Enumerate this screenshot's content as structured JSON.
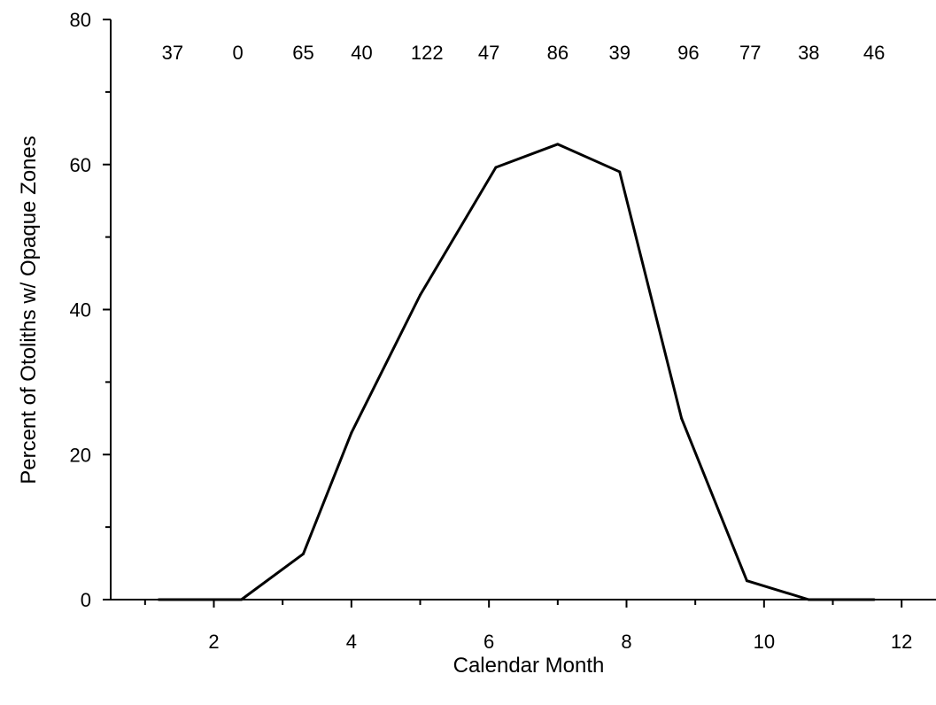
{
  "chart_data": {
    "type": "line",
    "xlabel": "Calendar Month",
    "ylabel": "Percent of Otoliths w/ Opaque Zones",
    "xlim": [
      0.5,
      12.5
    ],
    "ylim": [
      0,
      80
    ],
    "x_ticks": [
      2,
      4,
      6,
      8,
      10,
      12
    ],
    "y_ticks": [
      0,
      20,
      40,
      60,
      80
    ],
    "grid": false,
    "series": [
      {
        "x": [
          1.2,
          2.4,
          3.3,
          4.0,
          5.0,
          6.1,
          7.0,
          7.9,
          8.8,
          9.75,
          10.65,
          11.6
        ],
        "values": [
          0,
          0,
          6.3,
          23,
          42,
          59.6,
          62.8,
          59,
          25,
          2.6,
          0,
          0
        ]
      }
    ],
    "sample_sizes": {
      "x": [
        1.4,
        2.35,
        3.3,
        4.15,
        5.1,
        6.0,
        7.0,
        7.9,
        8.9,
        9.8,
        10.65,
        11.6
      ],
      "labels": [
        "37",
        "0",
        "65",
        "40",
        "122",
        "47",
        "86",
        "39",
        "96",
        "77",
        "38",
        "46"
      ]
    }
  }
}
